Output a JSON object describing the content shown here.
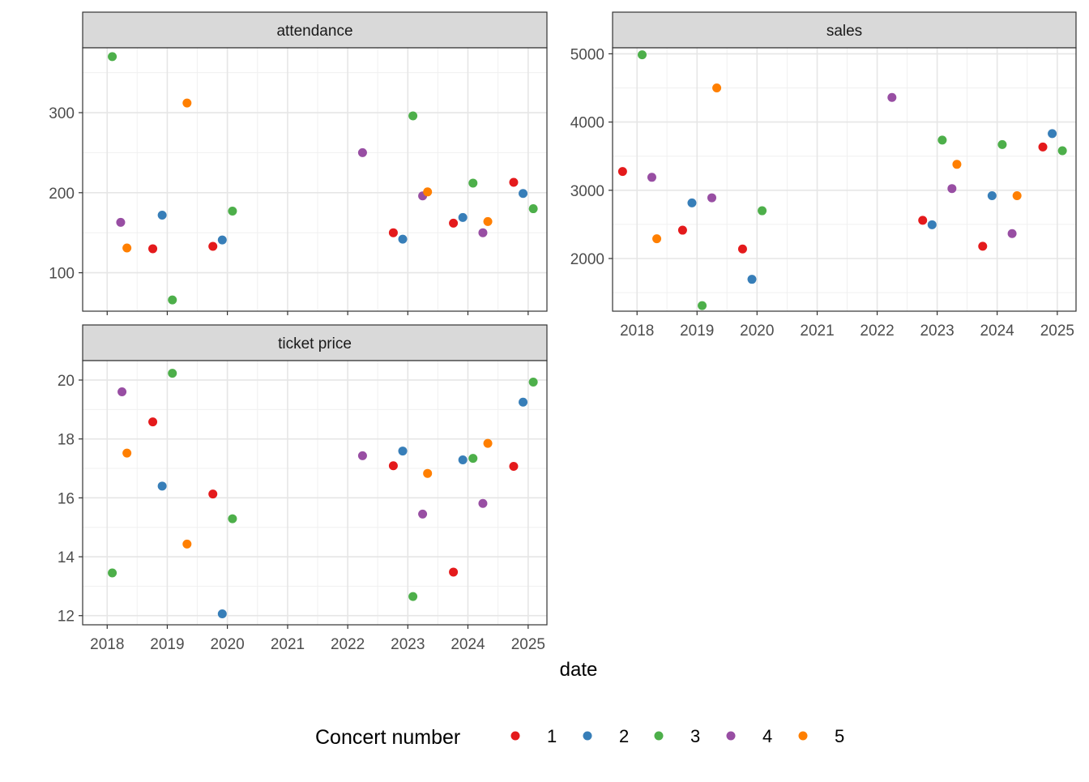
{
  "chart_data": {
    "type": "scatter",
    "xlabel": "date",
    "legend": {
      "title": "Concert number",
      "position": "bottom",
      "entries": [
        "1",
        "2",
        "3",
        "4",
        "5"
      ]
    },
    "colors": {
      "1": "#e41a1c",
      "2": "#377eb8",
      "3": "#4daf4a",
      "4": "#984ea3",
      "5": "#ff7f00"
    },
    "grid": true,
    "x_ticks": [
      "2018",
      "2019",
      "2020",
      "2021",
      "2022",
      "2023",
      "2024",
      "2025"
    ],
    "panels": [
      {
        "title": "attendance",
        "yticks": [
          100,
          200,
          300
        ],
        "ylim": [
          52,
          381
        ],
        "points": [
          {
            "date": "2018-02-01",
            "group": "3",
            "value": 370
          },
          {
            "date": "2018-03-24",
            "group": "4",
            "value": 163
          },
          {
            "date": "2018-05-01",
            "group": "5",
            "value": 131
          },
          {
            "date": "2018-10-05",
            "group": "1",
            "value": 130
          },
          {
            "date": "2018-12-01",
            "group": "2",
            "value": 172
          },
          {
            "date": "2019-02-01",
            "group": "3",
            "value": 66
          },
          {
            "date": "2019-05-01",
            "group": "5",
            "value": 312
          },
          {
            "date": "2019-10-05",
            "group": "1",
            "value": 133
          },
          {
            "date": "2019-12-01",
            "group": "2",
            "value": 141
          },
          {
            "date": "2020-02-01",
            "group": "3",
            "value": 177
          },
          {
            "date": "2022-04-01",
            "group": "4",
            "value": 250
          },
          {
            "date": "2022-10-05",
            "group": "1",
            "value": 150
          },
          {
            "date": "2022-12-01",
            "group": "2",
            "value": 142
          },
          {
            "date": "2023-02-01",
            "group": "3",
            "value": 296
          },
          {
            "date": "2023-04-01",
            "group": "4",
            "value": 196
          },
          {
            "date": "2023-05-01",
            "group": "5",
            "value": 201
          },
          {
            "date": "2023-10-05",
            "group": "1",
            "value": 162
          },
          {
            "date": "2023-12-01",
            "group": "2",
            "value": 169
          },
          {
            "date": "2024-02-01",
            "group": "3",
            "value": 212
          },
          {
            "date": "2024-04-01",
            "group": "4",
            "value": 150
          },
          {
            "date": "2024-05-01",
            "group": "5",
            "value": 164
          },
          {
            "date": "2024-10-05",
            "group": "1",
            "value": 213
          },
          {
            "date": "2024-12-01",
            "group": "2",
            "value": 199
          },
          {
            "date": "2025-02-01",
            "group": "3",
            "value": 180
          }
        ]
      },
      {
        "title": "sales",
        "yticks": [
          2000,
          3000,
          4000,
          5000
        ],
        "ylim": [
          1228,
          5088
        ],
        "points": [
          {
            "date": "2017-10-05",
            "group": "1",
            "value": 3275
          },
          {
            "date": "2018-02-01",
            "group": "3",
            "value": 4985
          },
          {
            "date": "2018-04-01",
            "group": "4",
            "value": 3190
          },
          {
            "date": "2018-05-01",
            "group": "5",
            "value": 2290
          },
          {
            "date": "2018-10-05",
            "group": "1",
            "value": 2415
          },
          {
            "date": "2018-12-01",
            "group": "2",
            "value": 2815
          },
          {
            "date": "2019-02-01",
            "group": "3",
            "value": 1310
          },
          {
            "date": "2019-04-01",
            "group": "4",
            "value": 2890
          },
          {
            "date": "2019-05-01",
            "group": "5",
            "value": 4500
          },
          {
            "date": "2019-10-05",
            "group": "1",
            "value": 2140
          },
          {
            "date": "2019-12-01",
            "group": "2",
            "value": 1695
          },
          {
            "date": "2020-02-01",
            "group": "3",
            "value": 2700
          },
          {
            "date": "2022-04-01",
            "group": "4",
            "value": 4360
          },
          {
            "date": "2022-10-05",
            "group": "1",
            "value": 2560
          },
          {
            "date": "2022-12-01",
            "group": "2",
            "value": 2495
          },
          {
            "date": "2023-02-01",
            "group": "3",
            "value": 3735
          },
          {
            "date": "2023-04-01",
            "group": "4",
            "value": 3025
          },
          {
            "date": "2023-05-01",
            "group": "5",
            "value": 3380
          },
          {
            "date": "2023-10-05",
            "group": "1",
            "value": 2180
          },
          {
            "date": "2023-12-01",
            "group": "2",
            "value": 2920
          },
          {
            "date": "2024-02-01",
            "group": "3",
            "value": 3670
          },
          {
            "date": "2024-04-01",
            "group": "4",
            "value": 2365
          },
          {
            "date": "2024-05-01",
            "group": "5",
            "value": 2920
          },
          {
            "date": "2024-10-05",
            "group": "1",
            "value": 3635
          },
          {
            "date": "2024-12-01",
            "group": "2",
            "value": 3830
          },
          {
            "date": "2025-02-01",
            "group": "3",
            "value": 3580
          }
        ]
      },
      {
        "title": "ticket price",
        "yticks": [
          12,
          14,
          16,
          18,
          20
        ],
        "ylim": [
          11.69,
          20.66
        ],
        "points": [
          {
            "date": "2018-02-01",
            "group": "3",
            "value": 13.45
          },
          {
            "date": "2018-04-01",
            "group": "4",
            "value": 19.6
          },
          {
            "date": "2018-05-01",
            "group": "5",
            "value": 17.52
          },
          {
            "date": "2018-10-05",
            "group": "1",
            "value": 18.58
          },
          {
            "date": "2018-12-01",
            "group": "2",
            "value": 16.4
          },
          {
            "date": "2019-02-01",
            "group": "3",
            "value": 20.23
          },
          {
            "date": "2019-05-01",
            "group": "5",
            "value": 14.43
          },
          {
            "date": "2019-10-05",
            "group": "1",
            "value": 16.13
          },
          {
            "date": "2019-12-01",
            "group": "2",
            "value": 12.06
          },
          {
            "date": "2020-02-01",
            "group": "3",
            "value": 15.29
          },
          {
            "date": "2022-04-01",
            "group": "4",
            "value": 17.43
          },
          {
            "date": "2022-10-05",
            "group": "1",
            "value": 17.09
          },
          {
            "date": "2022-12-01",
            "group": "2",
            "value": 17.59
          },
          {
            "date": "2023-02-01",
            "group": "3",
            "value": 12.65
          },
          {
            "date": "2023-04-01",
            "group": "4",
            "value": 15.45
          },
          {
            "date": "2023-05-01",
            "group": "5",
            "value": 16.83
          },
          {
            "date": "2023-10-05",
            "group": "1",
            "value": 13.48
          },
          {
            "date": "2023-12-01",
            "group": "2",
            "value": 17.29
          },
          {
            "date": "2024-02-01",
            "group": "3",
            "value": 17.34
          },
          {
            "date": "2024-04-01",
            "group": "4",
            "value": 15.81
          },
          {
            "date": "2024-05-01",
            "group": "5",
            "value": 17.85
          },
          {
            "date": "2024-10-05",
            "group": "1",
            "value": 17.07
          },
          {
            "date": "2024-12-01",
            "group": "2",
            "value": 19.25
          },
          {
            "date": "2025-02-01",
            "group": "3",
            "value": 19.93
          }
        ]
      }
    ]
  }
}
